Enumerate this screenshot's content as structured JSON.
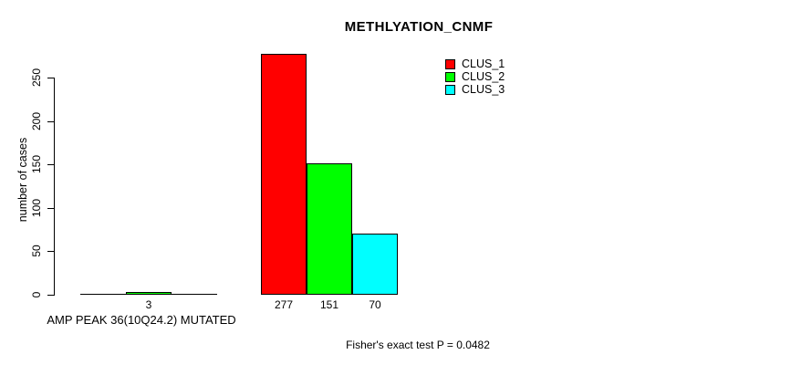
{
  "chart_data": {
    "type": "bar",
    "title": "METHLYATION_CNMF",
    "ylabel": "number of cases",
    "xlabel": "AMP PEAK 36(10Q24.2) MUTATED",
    "footnote": "Fisher's exact test P = 0.0482",
    "grid": false,
    "legend_position": "top-right-inside",
    "ylim": [
      0,
      290
    ],
    "yticks": [
      0,
      50,
      100,
      150,
      200,
      250
    ],
    "group_count": 2,
    "bar_outline_color": "#000000",
    "background_color": "#ffffff",
    "series": [
      {
        "name": "CLUS_1",
        "color": "#ff0000",
        "values": [
          0,
          277
        ],
        "labels": [
          "",
          "277"
        ]
      },
      {
        "name": "CLUS_2",
        "color": "#00ff00",
        "values": [
          3,
          151
        ],
        "labels": [
          "3",
          "151"
        ]
      },
      {
        "name": "CLUS_3",
        "color": "#00ffff",
        "values": [
          0,
          70
        ],
        "labels": [
          "",
          "70"
        ]
      }
    ]
  }
}
